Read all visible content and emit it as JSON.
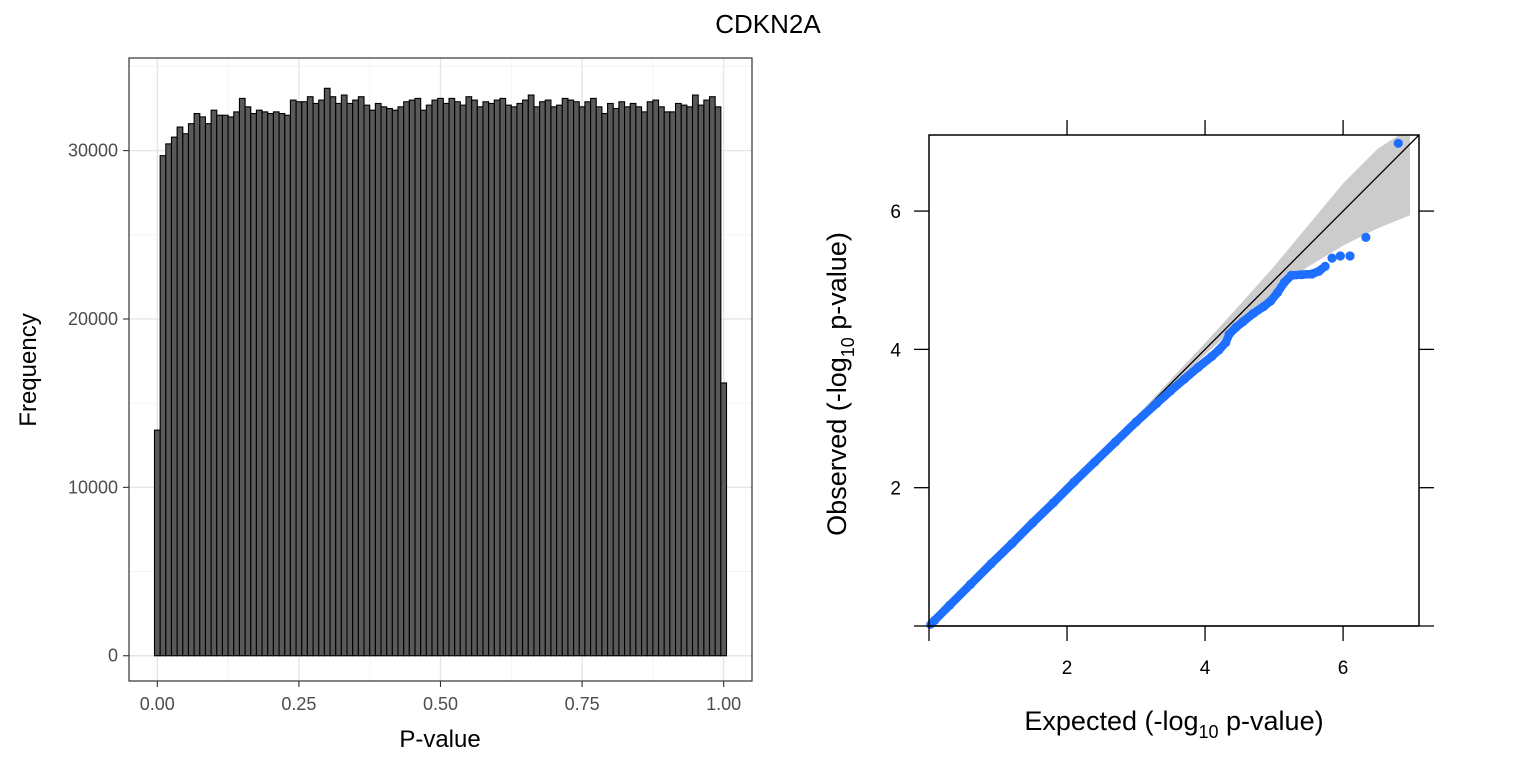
{
  "figure": {
    "title": "CDKN2A"
  },
  "chart_data": [
    {
      "type": "bar",
      "subtype": "histogram",
      "xlabel": "P-value",
      "ylabel": "Frequency",
      "xlim": [
        -0.05,
        1.05
      ],
      "ylim": [
        -1500,
        35500
      ],
      "x_ticks": [
        0.0,
        0.25,
        0.5,
        0.75,
        1.0
      ],
      "x_tick_labels": [
        "0.00",
        "0.25",
        "0.50",
        "0.75",
        "1.00"
      ],
      "y_ticks": [
        0,
        10000,
        20000,
        30000
      ],
      "y_tick_labels": [
        "0",
        "10000",
        "20000",
        "30000"
      ],
      "grid": true,
      "bin_start": -0.005,
      "bin_width": 0.01,
      "bar_color": "#595959",
      "values": [
        13400,
        29700,
        30400,
        30800,
        31400,
        31000,
        31600,
        32200,
        32000,
        31600,
        32400,
        32100,
        32100,
        32000,
        32300,
        33100,
        32600,
        32200,
        32400,
        32300,
        32200,
        32300,
        32200,
        32100,
        33000,
        32900,
        32900,
        33200,
        32800,
        33000,
        33700,
        33200,
        32800,
        33300,
        32800,
        33000,
        33200,
        32700,
        32400,
        32800,
        32600,
        32500,
        32400,
        32600,
        32900,
        33000,
        33100,
        32400,
        32700,
        33000,
        33100,
        32800,
        33100,
        32900,
        32700,
        33200,
        33000,
        32600,
        32900,
        32800,
        33000,
        33100,
        32700,
        32600,
        32800,
        33000,
        33300,
        32600,
        32900,
        33000,
        32600,
        32700,
        33100,
        33000,
        32900,
        32600,
        32900,
        33100,
        32600,
        32200,
        32800,
        32500,
        32900,
        32600,
        32800,
        32600,
        32300,
        32900,
        33000,
        32600,
        32300,
        32300,
        32800,
        32700,
        32600,
        33300,
        32700,
        33000,
        33200,
        32600,
        16200
      ]
    },
    {
      "type": "scatter",
      "subtype": "qq-plot",
      "xlabel": {
        "main": "Expected (-log",
        "sub": "10",
        "rest": " p-value)"
      },
      "ylabel": {
        "main": "Observed (-log",
        "sub": "10",
        "rest": " p-value)"
      },
      "xlim": [
        0,
        7.1
      ],
      "ylim": [
        0,
        7.1
      ],
      "x_ticks": [
        2,
        4,
        6
      ],
      "y_ticks": [
        2,
        4,
        6
      ],
      "x_tick_labels": [
        "2",
        "4",
        "6"
      ],
      "y_tick_labels": [
        "2",
        "4",
        "6"
      ],
      "point_color": "#1f6fff",
      "reference_line": "y = x",
      "confidence_band_color": "#cccccc",
      "confidence_band": {
        "x": [
          3.0,
          3.5,
          4.0,
          4.5,
          5.0,
          5.5,
          6.0,
          6.5,
          6.97
        ],
        "lower": [
          2.97,
          3.45,
          3.92,
          4.38,
          4.83,
          5.2,
          5.5,
          5.75,
          5.94
        ],
        "upper": [
          3.03,
          3.56,
          4.09,
          4.64,
          5.2,
          5.8,
          6.4,
          6.9,
          7.2
        ]
      },
      "points": [
        [
          0.08,
          0.08
        ],
        [
          0.3,
          0.3
        ],
        [
          0.6,
          0.6
        ],
        [
          0.9,
          0.9
        ],
        [
          1.2,
          1.19
        ],
        [
          1.5,
          1.49
        ],
        [
          1.8,
          1.78
        ],
        [
          2.1,
          2.08
        ],
        [
          2.4,
          2.37
        ],
        [
          2.7,
          2.66
        ],
        [
          3.0,
          2.95
        ],
        [
          3.3,
          3.22
        ],
        [
          3.5,
          3.4
        ],
        [
          3.7,
          3.57
        ],
        [
          3.9,
          3.74
        ],
        [
          4.1,
          3.9
        ],
        [
          4.2,
          3.99
        ],
        [
          4.3,
          4.1
        ],
        [
          4.35,
          4.22
        ],
        [
          4.45,
          4.32
        ],
        [
          4.55,
          4.4
        ],
        [
          4.7,
          4.52
        ],
        [
          4.85,
          4.62
        ],
        [
          4.95,
          4.7
        ],
        [
          5.05,
          4.82
        ],
        [
          5.15,
          4.97
        ],
        [
          5.25,
          5.07
        ],
        [
          5.4,
          5.08
        ],
        [
          5.55,
          5.09
        ],
        [
          5.65,
          5.13
        ],
        [
          5.74,
          5.2
        ],
        [
          5.84,
          5.32
        ],
        [
          5.96,
          5.35
        ],
        [
          6.1,
          5.35
        ],
        [
          6.33,
          5.62
        ],
        [
          6.8,
          6.98
        ]
      ]
    }
  ]
}
